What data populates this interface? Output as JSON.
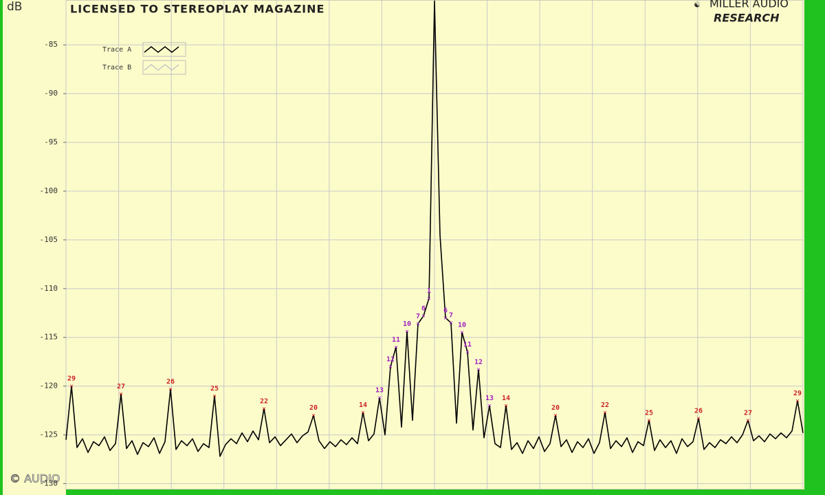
{
  "chart_data": {
    "type": "line",
    "title": "LICENSED TO STEREOPLAY MAGAZINE",
    "brand": [
      "MILLER AUDIO",
      "RESEARCH"
    ],
    "y_label": "dB",
    "credit": "© AUDIO",
    "ylim": [
      -130.6,
      -80.4
    ],
    "yticks": [
      -85,
      -90,
      -95,
      -100,
      -105,
      -110,
      -115,
      -120,
      -125,
      -130
    ],
    "grid": true,
    "categories": [
      null,
      null,
      null,
      null,
      null,
      null,
      null,
      null,
      null,
      null,
      null,
      null,
      null,
      null,
      null,
      null,
      null,
      null,
      null,
      null,
      null,
      null,
      null,
      null,
      null,
      null,
      null,
      null,
      null,
      null,
      null,
      null,
      null,
      null,
      null,
      null,
      null,
      null,
      null,
      null,
      null,
      null,
      null,
      null,
      null,
      null,
      null,
      null,
      null,
      null,
      null,
      null,
      null,
      null,
      null,
      null,
      null,
      null,
      null,
      null,
      null,
      null,
      null,
      null,
      null,
      null,
      null,
      null,
      null,
      null,
      null,
      null,
      null,
      null,
      null,
      null,
      null,
      null,
      null,
      null,
      null,
      null,
      null,
      null,
      null,
      null,
      null,
      null,
      null,
      null,
      null,
      null,
      null,
      null,
      null,
      null,
      null,
      null,
      null,
      null,
      null,
      null,
      null,
      null,
      null,
      null,
      null,
      null,
      null,
      null,
      null,
      null,
      null,
      null,
      null,
      null,
      null,
      null,
      null,
      null,
      null,
      null,
      null,
      null,
      null,
      null,
      null,
      null,
      null,
      null,
      null,
      null,
      null,
      null,
      null
    ],
    "series": [
      {
        "name": "Trace A",
        "color": "#000000",
        "values": [
          -125.5,
          -120,
          -126.3,
          -125.4,
          -126.8,
          -125.7,
          -126.1,
          -125.2,
          -126.6,
          -125.9,
          -120.8,
          -126.4,
          -125.6,
          -127,
          -125.8,
          -126.2,
          -125.3,
          -126.9,
          -125.7,
          -120.3,
          -126.5,
          -125.6,
          -126.1,
          -125.4,
          -126.7,
          -125.9,
          -126.3,
          -121,
          -127.2,
          -126,
          -125.4,
          -125.9,
          -124.8,
          -125.7,
          -124.6,
          -125.5,
          -122.3,
          -125.8,
          -125.2,
          -126.1,
          -125.5,
          -124.9,
          -125.8,
          -125.1,
          -124.7,
          -123,
          -125.6,
          -126.4,
          -125.7,
          -126.2,
          -125.5,
          -126,
          -125.3,
          -125.9,
          -122.7,
          -125.6,
          -124.9,
          -121.2,
          -125,
          -118,
          -116,
          -124.2,
          -114.4,
          -123.5,
          -113.6,
          -112.8,
          -111,
          -80.5,
          -104.5,
          -113,
          -113.5,
          -123.8,
          -114.5,
          -116.5,
          -124.5,
          -118.3,
          -125.3,
          -122,
          -125.9,
          -126.3,
          -122,
          -126.5,
          -125.8,
          -126.9,
          -125.6,
          -126.4,
          -125.2,
          -126.7,
          -125.9,
          -123,
          -126.2,
          -125.5,
          -126.8,
          -125.7,
          -126.3,
          -125.4,
          -126.9,
          -125.8,
          -122.7,
          -126.4,
          -125.6,
          -126.2,
          -125.3,
          -126.8,
          -125.7,
          -126.1,
          -123.5,
          -126.6,
          -125.5,
          -126.3,
          -125.6,
          -126.9,
          -125.4,
          -126.2,
          -125.7,
          -123.3,
          -126.5,
          -125.8,
          -126.3,
          -125.5,
          -125.9,
          -125.2,
          -125.8,
          -125,
          -123.5,
          -125.6,
          -125.1,
          -125.7,
          -124.9,
          -125.4,
          -124.8,
          -125.3,
          -124.6,
          -121.5,
          -124.8
        ],
        "marker_labels": [
          null,
          "29",
          null,
          null,
          null,
          null,
          null,
          null,
          null,
          null,
          "27",
          null,
          null,
          null,
          null,
          null,
          null,
          null,
          null,
          "26",
          null,
          null,
          null,
          null,
          null,
          null,
          null,
          "25",
          null,
          null,
          null,
          null,
          null,
          null,
          null,
          null,
          "22",
          null,
          null,
          null,
          null,
          null,
          null,
          null,
          null,
          "20",
          null,
          null,
          null,
          null,
          null,
          null,
          null,
          null,
          "14",
          null,
          null,
          "13",
          null,
          "12",
          "11",
          null,
          "10",
          null,
          "7",
          "6",
          "1",
          null,
          null,
          "6",
          "7",
          null,
          "10",
          "11",
          null,
          "12",
          null,
          "13",
          null,
          null,
          "14",
          null,
          null,
          null,
          null,
          null,
          null,
          null,
          null,
          "20",
          null,
          null,
          null,
          null,
          null,
          null,
          null,
          null,
          "22",
          null,
          null,
          null,
          null,
          null,
          null,
          null,
          "25",
          null,
          null,
          null,
          null,
          null,
          null,
          null,
          null,
          "26",
          null,
          null,
          null,
          null,
          null,
          null,
          null,
          null,
          "27",
          null,
          null,
          null,
          null,
          null,
          null,
          null,
          null,
          "29",
          null
        ],
        "marker_colors": [
          null,
          "#cc2222",
          null,
          null,
          null,
          null,
          null,
          null,
          null,
          null,
          "#cc2222",
          null,
          null,
          null,
          null,
          null,
          null,
          null,
          null,
          "#cc2222",
          null,
          null,
          null,
          null,
          null,
          null,
          null,
          "#cc2222",
          null,
          null,
          null,
          null,
          null,
          null,
          null,
          null,
          "#cc2222",
          null,
          null,
          null,
          null,
          null,
          null,
          null,
          null,
          "#cc2222",
          null,
          null,
          null,
          null,
          null,
          null,
          null,
          null,
          "#cc2222",
          null,
          null,
          "#a020c0",
          null,
          "#a020c0",
          "#a020c0",
          null,
          "#a020c0",
          null,
          "#a020c0",
          "#a020c0",
          "#a020c0",
          null,
          null,
          "#a020c0",
          "#a020c0",
          null,
          "#a020c0",
          "#a020c0",
          null,
          "#a020c0",
          null,
          "#a020c0",
          null,
          null,
          "#cc2222",
          null,
          null,
          null,
          null,
          null,
          null,
          null,
          null,
          "#cc2222",
          null,
          null,
          null,
          null,
          null,
          null,
          null,
          null,
          "#cc2222",
          null,
          null,
          null,
          null,
          null,
          null,
          null,
          "#cc2222",
          null,
          null,
          null,
          null,
          null,
          null,
          null,
          null,
          "#cc2222",
          null,
          null,
          null,
          null,
          null,
          null,
          null,
          null,
          "#cc2222",
          null,
          null,
          null,
          null,
          null,
          null,
          null,
          null,
          "#cc2222",
          null
        ]
      },
      {
        "name": "Trace B",
        "color": "#c8c8c8",
        "values": [
          null,
          null,
          null,
          null,
          null,
          null,
          null,
          null,
          null,
          null,
          null,
          null,
          null,
          null,
          null,
          null,
          null,
          null,
          null,
          null,
          null,
          null,
          null,
          null,
          null,
          null,
          null,
          null,
          null,
          null,
          null,
          null,
          null,
          null,
          null,
          null,
          null,
          null,
          null,
          null,
          null,
          null,
          null,
          null,
          null,
          null,
          null,
          null,
          null,
          null,
          null,
          null,
          null,
          null,
          null,
          null,
          null,
          null,
          null,
          null,
          null,
          null,
          null,
          null,
          null,
          null,
          null,
          null,
          null,
          null,
          null,
          null,
          null,
          null,
          null,
          null,
          null,
          null,
          null,
          null,
          null,
          null,
          null,
          null,
          null,
          null,
          null,
          null,
          null,
          null,
          null,
          null,
          null,
          null,
          null,
          null,
          null,
          null,
          null,
          null,
          null,
          null,
          null,
          null,
          null,
          null,
          null,
          null,
          null,
          null,
          null,
          null,
          null,
          null,
          null,
          null,
          null,
          null,
          null,
          null,
          null,
          null,
          null,
          null,
          null,
          null,
          null,
          null,
          null,
          null,
          null,
          null,
          null,
          null,
          null
        ]
      }
    ]
  }
}
